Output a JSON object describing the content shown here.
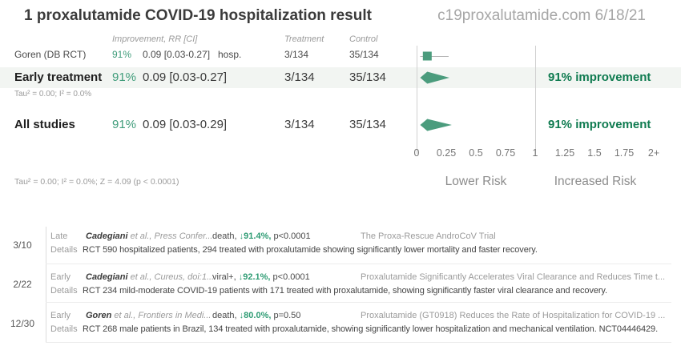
{
  "header": {
    "title": "1 proxalutamide COVID-19 hospitalization result",
    "source": "c19proxalutamide.com 6/18/21"
  },
  "columns": {
    "improvement": "Improvement, RR [CI]",
    "treatment": "Treatment",
    "control": "Control"
  },
  "goren": {
    "name": "Goren (DB RCT)",
    "improvement": "91%",
    "rr": "0.09 [0.03-0.27]",
    "outcome": "hosp.",
    "treatment": "3/134",
    "control": "35/134"
  },
  "early": {
    "label": "Early treatment",
    "improvement": "91%",
    "rr": "0.09 [0.03-0.27]",
    "treatment": "3/134",
    "control": "35/134",
    "result": "91% improvement",
    "footnote": "Tau² = 0.00; I² = 0.0%"
  },
  "all": {
    "label": "All studies",
    "improvement": "91%",
    "rr": "0.09 [0.03-0.29]",
    "treatment": "3/134",
    "control": "35/134",
    "result": "91% improvement"
  },
  "footnote": "Tau² = 0.00; I² = 0.0%; Z = 4.09 (p < 0.0001)",
  "chart_data": {
    "type": "forest",
    "title": "1 proxalutamide COVID-19 hospitalization result",
    "x_axis": {
      "ticks": [
        "0",
        "0.25",
        "0.5",
        "0.75",
        "1",
        "1.25",
        "1.5",
        "1.75",
        "2+"
      ],
      "range": [
        0,
        2.05
      ],
      "reference_lines": [
        0,
        1
      ],
      "label_left": "Lower Risk",
      "label_right": "Increased Risk"
    },
    "rows": [
      {
        "name": "Goren (DB RCT)",
        "rr": 0.09,
        "ci": [
          0.03,
          0.27
        ],
        "improvement_pct": 91,
        "outcome": "hosp.",
        "treatment": "3/134",
        "control": "35/134",
        "marker": "square"
      },
      {
        "name": "Early treatment",
        "rr": 0.09,
        "ci": [
          0.03,
          0.27
        ],
        "improvement_pct": 91,
        "treatment": "3/134",
        "control": "35/134",
        "marker": "diamond"
      },
      {
        "name": "All studies",
        "rr": 0.09,
        "ci": [
          0.03,
          0.29
        ],
        "improvement_pct": 91,
        "treatment": "3/134",
        "control": "35/134",
        "marker": "diamond"
      }
    ]
  },
  "ui": {
    "details_label": "Details"
  },
  "studies": [
    {
      "date": "3/10",
      "stage": "Late",
      "author": "Cadegiani",
      "citation": "et al., Press Confer...",
      "outcome": "death,",
      "effect": "↓91.4%,",
      "p": "p<0.0001",
      "title": "The Proxa-Rescue AndroCoV Trial",
      "details": "RCT 590 hospitalized patients, 294 treated with proxalutamide showing significantly lower mortality and faster recovery."
    },
    {
      "date": "2/22",
      "stage": "Early",
      "author": "Cadegiani",
      "citation": "et al., Cureus, doi:1...",
      "outcome": "viral+,",
      "effect": "↓92.1%,",
      "p": "p<0.0001",
      "title": "Proxalutamide Significantly Accelerates Viral Clearance and Reduces Time t...",
      "details": "RCT 234 mild-moderate COVID-19 patients with 171 treated with proxalutamide, showing significantly faster viral clearance and recovery."
    },
    {
      "date": "12/30",
      "stage": "Early",
      "author": "Goren",
      "citation": "et al., Frontiers in Medi...",
      "outcome": "death,",
      "effect": "↓80.0%,",
      "p": "p=0.50",
      "title": "Proxalutamide (GT0918) Reduces the Rate of Hospitalization for COVID-19 ...",
      "details": "RCT 268 male patients in Brazil, 134 treated with proxalutamide, showing significantly lower hospitalization and mechanical ventilation. NCT04446429."
    }
  ],
  "colors": {
    "green_text": "#3f9c7a",
    "green_bold": "#0f7b50",
    "marker_fill": "#4b9c7d",
    "highlight_bg": "#f2f5f2",
    "axis_line": "#d0d0d0",
    "ci_line": "#b5b5b5"
  }
}
